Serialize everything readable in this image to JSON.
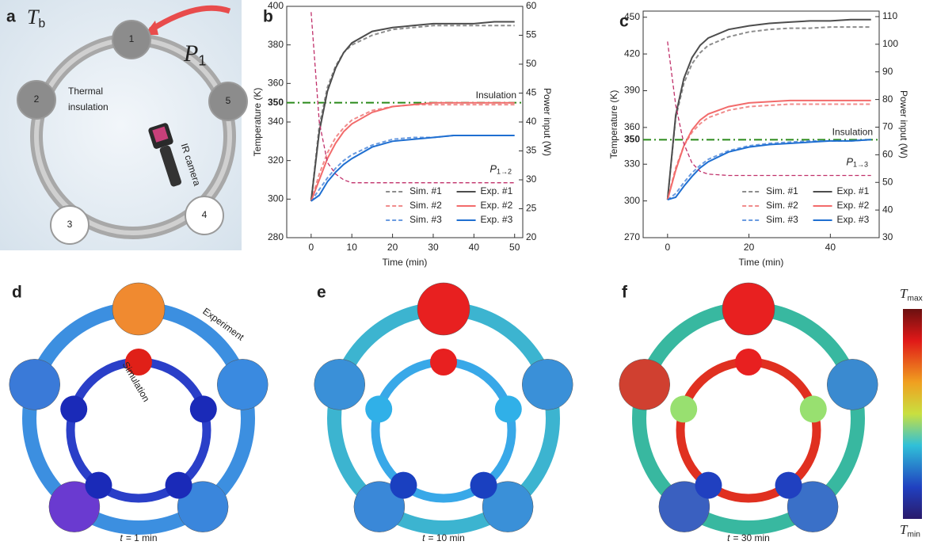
{
  "panel_a": {
    "label": "a",
    "ambient": {
      "symbol": "T",
      "subscript": "b"
    },
    "heat_input": {
      "symbol": "P",
      "subscript": "1"
    },
    "nodes": [
      "1",
      "2",
      "3",
      "4",
      "5"
    ],
    "insulation_label": [
      "Thermal",
      "insulation"
    ],
    "camera_label": "IR camera"
  },
  "chart_data": [
    {
      "type": "line",
      "panel_label": "b",
      "x_label": "Time (min)",
      "y_label": "Temperature (K)",
      "y2_label": "Power input (W)",
      "x": [
        0,
        2,
        4,
        6,
        8,
        10,
        15,
        20,
        25,
        30,
        35,
        40,
        45,
        50
      ],
      "xlim": [
        -6,
        52
      ],
      "xticks": [
        0,
        10,
        20,
        30,
        40,
        50
      ],
      "ylim": [
        280,
        400
      ],
      "yticks": [
        280,
        300,
        320,
        340,
        360,
        380,
        400
      ],
      "y2lim": [
        20,
        60
      ],
      "y2ticks": [
        20,
        25,
        30,
        35,
        40,
        45,
        50,
        55,
        60
      ],
      "threshold": 350,
      "threshold_color": "#2a8a1a",
      "threshold_label": "Insulation",
      "power_label": {
        "symbol": "P",
        "subscript": "1→2"
      },
      "series": [
        {
          "name": "Sim. #1",
          "color": "#8c8c8c",
          "style": "dashed",
          "values": [
            299,
            338,
            358,
            369,
            376,
            380,
            385,
            388,
            389,
            390,
            390,
            390,
            390,
            390
          ]
        },
        {
          "name": "Sim. #2",
          "color": "#f08c8c",
          "style": "dashed",
          "values": [
            299,
            313,
            324,
            332,
            337,
            341,
            346,
            348,
            349,
            349,
            349,
            349,
            349,
            349
          ]
        },
        {
          "name": "Sim. #3",
          "color": "#6a9be0",
          "style": "dashed",
          "values": [
            299,
            305,
            311,
            316,
            320,
            323,
            328,
            331,
            332,
            332,
            333,
            333,
            333,
            333
          ]
        },
        {
          "name": "Exp. #1",
          "color": "#4d4d4d",
          "style": "solid",
          "values": [
            299,
            335,
            356,
            368,
            376,
            381,
            387,
            389,
            390,
            391,
            391,
            391,
            392,
            392
          ]
        },
        {
          "name": "Exp. #2",
          "color": "#f26b6b",
          "style": "solid",
          "values": [
            299,
            310,
            321,
            329,
            335,
            339,
            345,
            348,
            349,
            350,
            350,
            350,
            350,
            350
          ]
        },
        {
          "name": "Exp. #3",
          "color": "#1f6fd1",
          "style": "solid",
          "values": [
            299,
            302,
            309,
            314,
            318,
            321,
            327,
            330,
            331,
            332,
            333,
            333,
            333,
            333
          ]
        },
        {
          "color": "#c0306a",
          "style": "dashed",
          "axis": "y2",
          "values": [
            59,
            40,
            33,
            31,
            30,
            29.5,
            29.5,
            29.5,
            29.5,
            29.5,
            29.5,
            29.5,
            29.5,
            29.5
          ]
        }
      ]
    },
    {
      "type": "line",
      "panel_label": "c",
      "x_label": "Time (min)",
      "y_label": "Temperature (K)",
      "y2_label": "Power input (W)",
      "x": [
        0,
        2,
        4,
        6,
        8,
        10,
        15,
        20,
        25,
        30,
        35,
        40,
        45,
        50
      ],
      "xlim": [
        -6,
        52
      ],
      "xticks": [
        0,
        20,
        40
      ],
      "ylim": [
        270,
        455
      ],
      "yticks": [
        270,
        300,
        330,
        360,
        390,
        420,
        450
      ],
      "y2lim": [
        30,
        112
      ],
      "y2ticks": [
        30,
        40,
        50,
        60,
        70,
        80,
        90,
        100,
        110
      ],
      "threshold": 350,
      "threshold_color": "#2a8a1a",
      "threshold_label": "Insulation",
      "power_label": {
        "symbol": "P",
        "subscript": "1→3"
      },
      "series": [
        {
          "name": "Sim. #1",
          "color": "#8c8c8c",
          "style": "dashed",
          "values": [
            301,
            368,
            396,
            412,
            421,
            427,
            434,
            438,
            440,
            441,
            441,
            442,
            442,
            442
          ]
        },
        {
          "name": "Sim. #2",
          "color": "#f08c8c",
          "style": "dashed",
          "values": [
            301,
            327,
            345,
            356,
            363,
            368,
            374,
            377,
            378,
            379,
            379,
            379,
            379,
            379
          ]
        },
        {
          "name": "Sim. #3",
          "color": "#6a9be0",
          "style": "dashed",
          "values": [
            301,
            306,
            315,
            323,
            329,
            334,
            341,
            345,
            347,
            348,
            349,
            349,
            349,
            350
          ]
        },
        {
          "name": "Exp. #1",
          "color": "#4d4d4d",
          "style": "solid",
          "values": [
            301,
            370,
            400,
            417,
            427,
            433,
            440,
            443,
            445,
            446,
            447,
            447,
            448,
            448
          ]
        },
        {
          "name": "Exp. #2",
          "color": "#f26b6b",
          "style": "solid",
          "values": [
            301,
            325,
            345,
            358,
            366,
            371,
            377,
            380,
            381,
            382,
            382,
            382,
            382,
            382
          ]
        },
        {
          "name": "Exp. #3",
          "color": "#1f6fd1",
          "style": "solid",
          "values": [
            301,
            303,
            312,
            320,
            327,
            332,
            340,
            344,
            346,
            347,
            348,
            349,
            349,
            350
          ]
        },
        {
          "color": "#c0306a",
          "style": "dashed",
          "axis": "y2",
          "values": [
            101,
            78,
            64,
            57,
            54,
            53,
            52.5,
            52.5,
            52.5,
            52.5,
            52.5,
            52.5,
            52.5,
            52.5
          ]
        }
      ]
    }
  ],
  "maps": [
    {
      "label": "d",
      "caption": {
        "variable": "t",
        "text": "= 1 min"
      },
      "experiment_label": "Experiment",
      "simulation_label": "Simulation"
    },
    {
      "label": "e",
      "caption": {
        "variable": "t",
        "text": "= 10 min"
      }
    },
    {
      "label": "f",
      "caption": {
        "variable": "t",
        "text": "= 30 min"
      }
    }
  ],
  "colorbar": {
    "max": {
      "symbol": "T",
      "subscript": "max"
    },
    "min": {
      "symbol": "T",
      "subscript": "min"
    }
  }
}
